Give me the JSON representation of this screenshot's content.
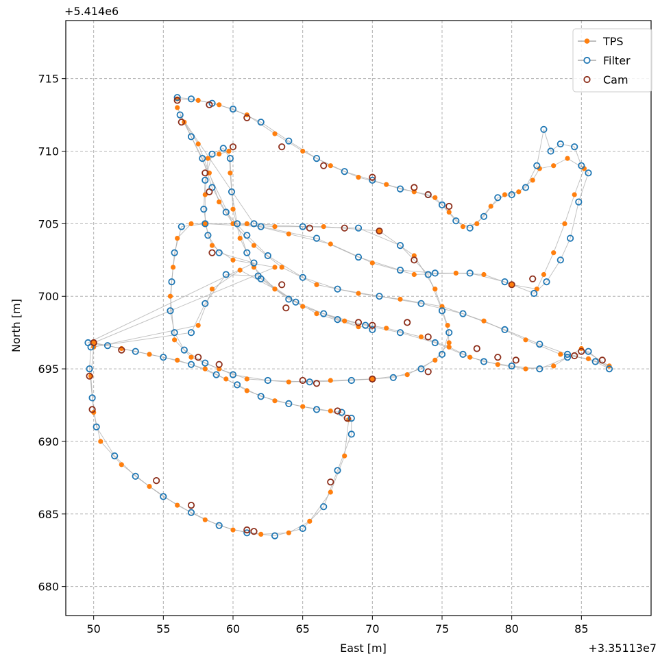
{
  "chart_data": {
    "type": "line",
    "title": "",
    "xlabel": "East [m]",
    "ylabel": "North [m]",
    "x_offset_label": "+3.35113e7",
    "y_offset_label": "+5.414e6",
    "xlim": [
      48,
      90
    ],
    "ylim": [
      678,
      719
    ],
    "xticks": [
      50,
      55,
      60,
      65,
      70,
      75,
      80,
      85
    ],
    "yticks": [
      680,
      685,
      690,
      695,
      700,
      705,
      710,
      715
    ],
    "grid": true,
    "legend_position": "top-right",
    "colors": {
      "tps": "#ff7f0e",
      "filter": "#1f77b4",
      "cam": "#8c2d19",
      "line": "#a8a8a8"
    },
    "series": [
      {
        "name": "TPS",
        "marker": "filled-circle",
        "points": [
          [
            56.0,
            713.6
          ],
          [
            57.5,
            713.5
          ],
          [
            59.0,
            713.2
          ],
          [
            61.0,
            712.5
          ],
          [
            63.0,
            711.2
          ],
          [
            65.0,
            710.0
          ],
          [
            67.0,
            709.0
          ],
          [
            69.0,
            708.2
          ],
          [
            71.0,
            707.7
          ],
          [
            73.0,
            707.2
          ],
          [
            74.5,
            706.8
          ],
          [
            75.5,
            705.8
          ],
          [
            76.5,
            704.8
          ],
          [
            77.5,
            705.0
          ],
          [
            78.5,
            706.2
          ],
          [
            79.5,
            707.0
          ],
          [
            80.5,
            707.2
          ],
          [
            81.5,
            708.0
          ],
          [
            82.0,
            708.8
          ],
          [
            83.0,
            709.0
          ],
          [
            84.0,
            709.5
          ],
          [
            85.2,
            708.8
          ],
          [
            84.5,
            707.0
          ],
          [
            83.8,
            705.0
          ],
          [
            83.0,
            703.0
          ],
          [
            82.3,
            701.5
          ],
          [
            81.8,
            700.5
          ],
          [
            80.0,
            700.8
          ],
          [
            78.0,
            701.5
          ],
          [
            76.0,
            701.6
          ],
          [
            73.0,
            701.5
          ],
          [
            70.0,
            702.3
          ],
          [
            67.0,
            703.6
          ],
          [
            64.0,
            704.3
          ],
          [
            61.0,
            705.0
          ],
          [
            57.0,
            705.0
          ],
          [
            56.0,
            704.0
          ],
          [
            55.7,
            702.0
          ],
          [
            55.5,
            700.0
          ],
          [
            55.8,
            697.0
          ],
          [
            57.0,
            695.8
          ],
          [
            59.0,
            695.0
          ],
          [
            61.0,
            694.3
          ],
          [
            64.0,
            694.1
          ],
          [
            67.0,
            694.2
          ],
          [
            70.0,
            694.3
          ],
          [
            72.5,
            694.6
          ],
          [
            74.5,
            695.6
          ],
          [
            75.5,
            696.8
          ],
          [
            75.4,
            698.0
          ],
          [
            74.5,
            700.5
          ],
          [
            73.0,
            702.8
          ],
          [
            70.5,
            704.5
          ],
          [
            66.5,
            704.8
          ],
          [
            63.0,
            704.8
          ],
          [
            60.0,
            705.0
          ],
          [
            56.0,
            713.0
          ],
          [
            56.5,
            712.0
          ],
          [
            57.5,
            710.5
          ],
          [
            58.3,
            708.5
          ],
          [
            59.0,
            706.5
          ],
          [
            60.0,
            705.0
          ],
          [
            61.5,
            703.5
          ],
          [
            63.5,
            702.0
          ],
          [
            66.0,
            700.8
          ],
          [
            69.0,
            700.2
          ],
          [
            72.0,
            699.8
          ],
          [
            75.0,
            699.3
          ],
          [
            78.0,
            698.3
          ],
          [
            81.0,
            697.0
          ],
          [
            83.5,
            696.0
          ],
          [
            85.5,
            695.7
          ],
          [
            87.0,
            695.2
          ],
          [
            85.0,
            696.4
          ],
          [
            83.0,
            695.2
          ],
          [
            81.0,
            695.0
          ],
          [
            79.0,
            695.3
          ],
          [
            77.0,
            695.8
          ],
          [
            75.5,
            696.5
          ],
          [
            73.5,
            697.2
          ],
          [
            71.0,
            697.8
          ],
          [
            68.0,
            698.3
          ],
          [
            65.0,
            699.3
          ],
          [
            63.0,
            700.5
          ],
          [
            61.5,
            702.0
          ],
          [
            60.5,
            704.0
          ],
          [
            60.0,
            706.0
          ],
          [
            59.8,
            708.5
          ],
          [
            59.7,
            710.0
          ],
          [
            59.0,
            709.8
          ],
          [
            58.2,
            709.5
          ],
          [
            58.0,
            707.0
          ],
          [
            58.0,
            705.0
          ],
          [
            58.5,
            703.5
          ],
          [
            60.0,
            702.5
          ],
          [
            63.0,
            702.0
          ],
          [
            50.0,
            696.8
          ],
          [
            52.0,
            696.4
          ],
          [
            54.0,
            696.0
          ],
          [
            56.0,
            695.6
          ],
          [
            58.0,
            695.0
          ],
          [
            59.5,
            694.3
          ],
          [
            61.0,
            693.5
          ],
          [
            63.0,
            692.8
          ],
          [
            65.0,
            692.4
          ],
          [
            67.0,
            692.1
          ],
          [
            68.3,
            691.5
          ],
          [
            68.0,
            689.0
          ],
          [
            67.0,
            686.5
          ],
          [
            65.5,
            684.5
          ],
          [
            64.0,
            683.7
          ],
          [
            62.0,
            683.6
          ],
          [
            60.0,
            683.9
          ],
          [
            58.0,
            684.6
          ],
          [
            56.0,
            685.6
          ],
          [
            54.0,
            686.9
          ],
          [
            52.0,
            688.4
          ],
          [
            50.5,
            690.0
          ],
          [
            50.0,
            692.0
          ],
          [
            49.8,
            694.5
          ],
          [
            50.0,
            696.5
          ],
          [
            57.5,
            698.0
          ],
          [
            58.5,
            700.5
          ],
          [
            60.5,
            701.8
          ],
          [
            63.0,
            700.5
          ],
          [
            66.0,
            698.8
          ],
          [
            69.0,
            697.9
          ]
        ]
      },
      {
        "name": "Filter",
        "marker": "open-circle",
        "points": [
          [
            56.0,
            713.7
          ],
          [
            57.0,
            713.6
          ],
          [
            58.5,
            713.3
          ],
          [
            60.0,
            712.9
          ],
          [
            62.0,
            712.0
          ],
          [
            64.0,
            710.7
          ],
          [
            66.0,
            709.5
          ],
          [
            68.0,
            708.6
          ],
          [
            70.0,
            708.0
          ],
          [
            72.0,
            707.4
          ],
          [
            74.0,
            707.0
          ],
          [
            75.0,
            706.3
          ],
          [
            76.0,
            705.2
          ],
          [
            77.0,
            704.7
          ],
          [
            78.0,
            705.5
          ],
          [
            79.0,
            706.8
          ],
          [
            80.0,
            707.0
          ],
          [
            81.0,
            707.5
          ],
          [
            81.8,
            709.0
          ],
          [
            82.3,
            711.5
          ],
          [
            82.8,
            710.0
          ],
          [
            83.5,
            710.5
          ],
          [
            84.5,
            710.3
          ],
          [
            85.0,
            709.0
          ],
          [
            85.5,
            708.5
          ],
          [
            84.8,
            706.5
          ],
          [
            84.2,
            704.0
          ],
          [
            83.5,
            702.5
          ],
          [
            82.5,
            701.0
          ],
          [
            81.6,
            700.2
          ],
          [
            79.5,
            701.0
          ],
          [
            77.0,
            701.6
          ],
          [
            74.5,
            701.6
          ],
          [
            72.0,
            701.8
          ],
          [
            69.0,
            702.7
          ],
          [
            66.0,
            704.0
          ],
          [
            62.0,
            704.8
          ],
          [
            58.0,
            705.0
          ],
          [
            56.3,
            704.8
          ],
          [
            55.8,
            703.0
          ],
          [
            55.6,
            701.0
          ],
          [
            55.5,
            699.0
          ],
          [
            55.8,
            697.5
          ],
          [
            56.5,
            696.3
          ],
          [
            58.0,
            695.4
          ],
          [
            60.0,
            694.6
          ],
          [
            62.5,
            694.2
          ],
          [
            65.5,
            694.1
          ],
          [
            68.5,
            694.2
          ],
          [
            71.5,
            694.4
          ],
          [
            73.5,
            695.0
          ],
          [
            75.0,
            696.0
          ],
          [
            75.5,
            697.5
          ],
          [
            75.0,
            699.0
          ],
          [
            74.0,
            701.5
          ],
          [
            72.0,
            703.5
          ],
          [
            69.0,
            704.7
          ],
          [
            65.0,
            704.8
          ],
          [
            61.5,
            705.0
          ],
          [
            56.2,
            712.5
          ],
          [
            57.0,
            711.0
          ],
          [
            57.8,
            709.5
          ],
          [
            58.5,
            707.5
          ],
          [
            59.5,
            705.8
          ],
          [
            61.0,
            704.2
          ],
          [
            62.5,
            702.8
          ],
          [
            65.0,
            701.3
          ],
          [
            67.5,
            700.5
          ],
          [
            70.5,
            700.0
          ],
          [
            73.5,
            699.5
          ],
          [
            76.5,
            698.8
          ],
          [
            79.5,
            697.7
          ],
          [
            82.0,
            696.7
          ],
          [
            84.0,
            696.0
          ],
          [
            86.0,
            695.5
          ],
          [
            87.0,
            695.0
          ],
          [
            85.5,
            696.2
          ],
          [
            84.0,
            695.8
          ],
          [
            82.0,
            695.0
          ],
          [
            80.0,
            695.2
          ],
          [
            78.0,
            695.5
          ],
          [
            76.5,
            696.0
          ],
          [
            74.5,
            696.8
          ],
          [
            72.0,
            697.5
          ],
          [
            69.5,
            698.0
          ],
          [
            66.5,
            698.8
          ],
          [
            64.0,
            699.8
          ],
          [
            62.0,
            701.2
          ],
          [
            61.0,
            703.0
          ],
          [
            60.3,
            705.0
          ],
          [
            59.9,
            707.2
          ],
          [
            59.8,
            709.5
          ],
          [
            59.3,
            710.2
          ],
          [
            58.5,
            709.8
          ],
          [
            58.0,
            708.0
          ],
          [
            57.9,
            706.0
          ],
          [
            58.2,
            704.2
          ],
          [
            59.0,
            703.0
          ],
          [
            61.5,
            702.3
          ],
          [
            49.6,
            696.8
          ],
          [
            51.0,
            696.6
          ],
          [
            53.0,
            696.2
          ],
          [
            55.0,
            695.8
          ],
          [
            57.0,
            695.3
          ],
          [
            58.8,
            694.6
          ],
          [
            60.3,
            693.9
          ],
          [
            62.0,
            693.1
          ],
          [
            64.0,
            692.6
          ],
          [
            66.0,
            692.2
          ],
          [
            67.8,
            692.0
          ],
          [
            68.5,
            691.6
          ],
          [
            68.5,
            690.5
          ],
          [
            67.5,
            688.0
          ],
          [
            66.5,
            685.5
          ],
          [
            65.0,
            684.0
          ],
          [
            63.0,
            683.5
          ],
          [
            61.0,
            683.7
          ],
          [
            59.0,
            684.2
          ],
          [
            57.0,
            685.1
          ],
          [
            55.0,
            686.2
          ],
          [
            53.0,
            687.6
          ],
          [
            51.5,
            689.0
          ],
          [
            50.2,
            691.0
          ],
          [
            49.9,
            693.0
          ],
          [
            49.7,
            695.0
          ],
          [
            49.8,
            696.5
          ],
          [
            57.0,
            697.5
          ],
          [
            58.0,
            699.5
          ],
          [
            59.5,
            701.5
          ],
          [
            61.8,
            701.4
          ],
          [
            64.5,
            699.6
          ],
          [
            67.5,
            698.4
          ],
          [
            70.0,
            697.7
          ]
        ]
      },
      {
        "name": "Cam",
        "marker": "open-circle",
        "points": [
          [
            56.0,
            713.5
          ],
          [
            56.3,
            712.0
          ],
          [
            58.3,
            713.2
          ],
          [
            61.0,
            712.3
          ],
          [
            63.5,
            710.3
          ],
          [
            66.5,
            709.0
          ],
          [
            70.0,
            708.2
          ],
          [
            73.0,
            707.5
          ],
          [
            74.0,
            707.0
          ],
          [
            75.5,
            706.2
          ],
          [
            58.0,
            708.5
          ],
          [
            58.3,
            707.2
          ],
          [
            60.0,
            710.3
          ],
          [
            58.5,
            703.0
          ],
          [
            63.5,
            700.8
          ],
          [
            65.5,
            704.7
          ],
          [
            68.0,
            704.7
          ],
          [
            70.5,
            704.5
          ],
          [
            73.0,
            702.5
          ],
          [
            69.0,
            698.2
          ],
          [
            70.0,
            698.0
          ],
          [
            72.5,
            698.2
          ],
          [
            74.0,
            697.2
          ],
          [
            77.5,
            696.4
          ],
          [
            79.0,
            695.8
          ],
          [
            80.3,
            695.6
          ],
          [
            85.0,
            696.2
          ],
          [
            84.5,
            695.9
          ],
          [
            86.5,
            695.6
          ],
          [
            57.5,
            695.8
          ],
          [
            59.0,
            695.3
          ],
          [
            65.0,
            694.2
          ],
          [
            66.0,
            694.0
          ],
          [
            70.0,
            694.3
          ],
          [
            74.0,
            694.8
          ],
          [
            80.0,
            700.8
          ],
          [
            81.5,
            701.2
          ],
          [
            63.8,
            699.2
          ],
          [
            50.0,
            696.8
          ],
          [
            49.7,
            694.5
          ],
          [
            49.9,
            692.2
          ],
          [
            52.0,
            696.3
          ],
          [
            54.5,
            687.3
          ],
          [
            57.0,
            685.6
          ],
          [
            61.0,
            683.9
          ],
          [
            61.5,
            683.8
          ],
          [
            67.0,
            687.2
          ],
          [
            67.5,
            692.1
          ],
          [
            68.2,
            691.6
          ]
        ]
      }
    ]
  }
}
